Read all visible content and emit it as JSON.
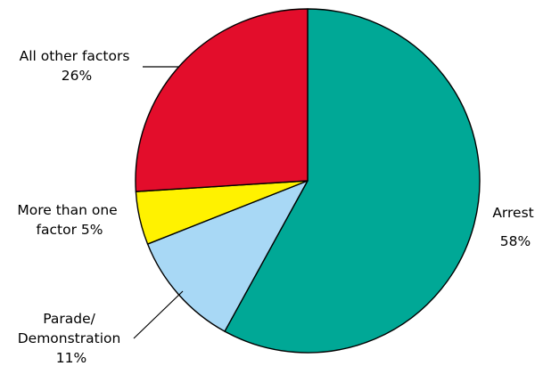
{
  "chart_data": {
    "type": "pie",
    "title": "",
    "slices": [
      {
        "label": "Arrest",
        "value": 58,
        "value_text": "58%",
        "color": "#00A896"
      },
      {
        "label": "Parade/ Demonstration",
        "value": 11,
        "value_text": "11%",
        "color": "#A8D8F5"
      },
      {
        "label": "More than one factor",
        "value": 5,
        "value_text": "5%",
        "color": "#FFF200"
      },
      {
        "label": "All other factors",
        "value": 26,
        "value_text": "26%",
        "color": "#E30D2B"
      }
    ],
    "label_lines": {
      "arrest": [
        "Arrest",
        "58%"
      ],
      "parade": [
        "Parade/",
        "Demonstration",
        "11%"
      ],
      "more": [
        "More than one",
        "factor 5%"
      ],
      "other": [
        "All other factors",
        "26%"
      ]
    },
    "start_angle_deg": 0,
    "direction": "clockwise",
    "outline_color": "#000000",
    "legend": "none"
  }
}
